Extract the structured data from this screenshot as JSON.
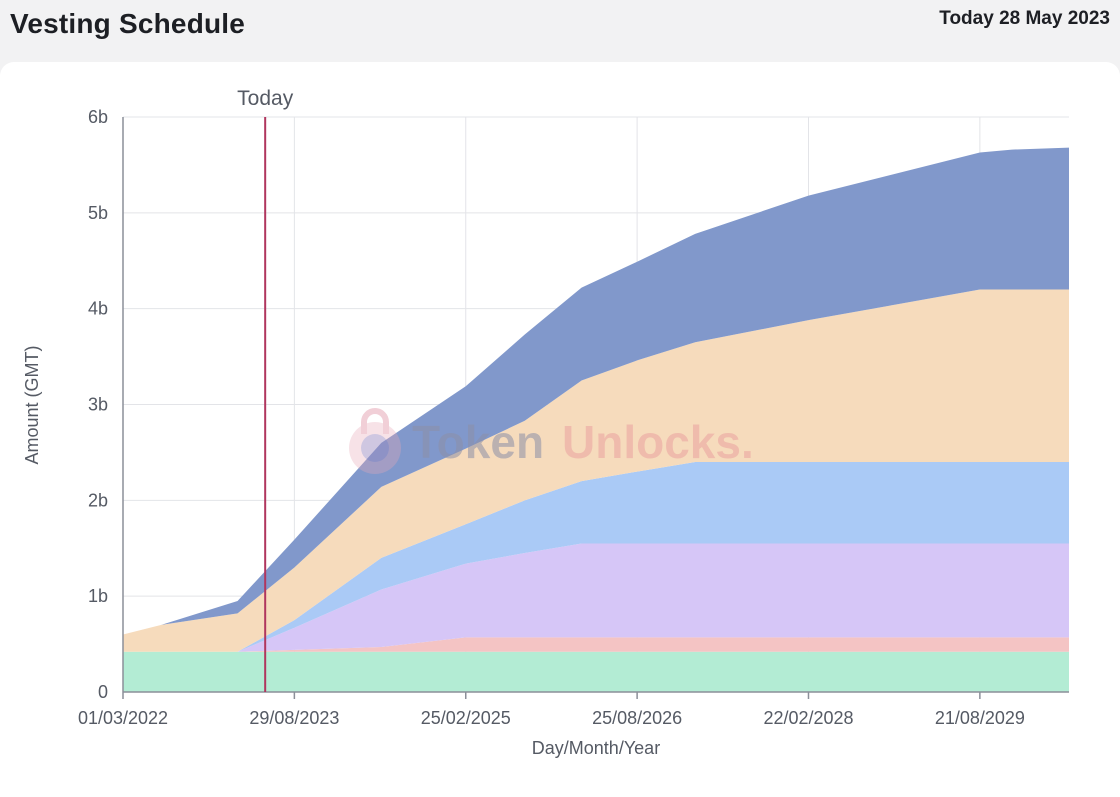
{
  "header": {
    "title": "Vesting Schedule",
    "today_text": "Today 28 May 2023"
  },
  "watermark": {
    "text_a": "Token",
    "text_b": "Unlocks."
  },
  "chart_data": {
    "type": "area",
    "stacked": true,
    "xlabel": "Day/Month/Year",
    "ylabel": "Amount (GMT)",
    "x_range": [
      "2022-03-01",
      "2030-06-01"
    ],
    "ylim": [
      0,
      6000000000
    ],
    "y_ticks": [
      {
        "value": 0,
        "label": "0"
      },
      {
        "value": 1000000000,
        "label": "1b"
      },
      {
        "value": 2000000000,
        "label": "2b"
      },
      {
        "value": 3000000000,
        "label": "3b"
      },
      {
        "value": 4000000000,
        "label": "4b"
      },
      {
        "value": 5000000000,
        "label": "5b"
      },
      {
        "value": 6000000000,
        "label": "6b"
      }
    ],
    "x_ticks": [
      {
        "date": "2022-03-01",
        "label": "01/03/2022"
      },
      {
        "date": "2023-08-29",
        "label": "29/08/2023"
      },
      {
        "date": "2025-02-25",
        "label": "25/02/2025"
      },
      {
        "date": "2026-08-25",
        "label": "25/08/2026"
      },
      {
        "date": "2028-02-22",
        "label": "22/02/2028"
      },
      {
        "date": "2029-08-21",
        "label": "21/08/2029"
      }
    ],
    "grid": true,
    "marker": {
      "label": "Today",
      "date": "2023-05-28",
      "color": "#b0365e"
    },
    "series": [
      {
        "color": "#b3ecd4",
        "points": [
          [
            "2022-03-01",
            420000000
          ],
          [
            "2030-06-01",
            420000000
          ]
        ]
      },
      {
        "color": "#f4c4c4",
        "points": [
          [
            "2022-03-01",
            0
          ],
          [
            "2023-03-01",
            0
          ],
          [
            "2024-06-01",
            50000000
          ],
          [
            "2025-02-25",
            150000000
          ],
          [
            "2030-06-01",
            150000000
          ]
        ]
      },
      {
        "color": "#d6c6f7",
        "points": [
          [
            "2022-03-01",
            0
          ],
          [
            "2023-03-01",
            0
          ],
          [
            "2023-08-29",
            230000000
          ],
          [
            "2024-06-01",
            600000000
          ],
          [
            "2025-02-25",
            770000000
          ],
          [
            "2025-09-01",
            880000000
          ],
          [
            "2026-03-01",
            980000000
          ],
          [
            "2030-06-01",
            980000000
          ]
        ]
      },
      {
        "color": "#aacaf6",
        "points": [
          [
            "2022-03-01",
            0
          ],
          [
            "2023-03-01",
            0
          ],
          [
            "2023-08-29",
            80000000
          ],
          [
            "2024-06-01",
            330000000
          ],
          [
            "2025-02-25",
            410000000
          ],
          [
            "2025-09-01",
            550000000
          ],
          [
            "2026-03-01",
            650000000
          ],
          [
            "2026-08-25",
            750000000
          ],
          [
            "2027-02-26",
            850000000
          ],
          [
            "2030-06-01",
            850000000
          ]
        ]
      },
      {
        "color": "#f6dbbc",
        "points": [
          [
            "2022-03-01",
            180000000
          ],
          [
            "2022-07-01",
            280000000
          ],
          [
            "2023-03-01",
            400000000
          ],
          [
            "2023-08-29",
            550000000
          ],
          [
            "2024-06-01",
            740000000
          ],
          [
            "2025-02-25",
            790000000
          ],
          [
            "2025-09-01",
            830000000
          ],
          [
            "2026-03-01",
            1050000000
          ],
          [
            "2026-08-25",
            1160000000
          ],
          [
            "2027-02-26",
            1250000000
          ],
          [
            "2028-02-22",
            1480000000
          ],
          [
            "2029-08-21",
            1800000000
          ],
          [
            "2030-06-01",
            1800000000
          ]
        ]
      },
      {
        "color": "#8198cb",
        "points": [
          [
            "2022-03-01",
            0
          ],
          [
            "2022-07-01",
            0
          ],
          [
            "2023-03-01",
            130000000
          ],
          [
            "2023-08-29",
            290000000
          ],
          [
            "2024-06-01",
            460000000
          ],
          [
            "2025-02-25",
            650000000
          ],
          [
            "2025-09-01",
            900000000
          ],
          [
            "2026-03-01",
            970000000
          ],
          [
            "2026-08-25",
            1030000000
          ],
          [
            "2027-02-26",
            1130000000
          ],
          [
            "2028-02-22",
            1300000000
          ],
          [
            "2029-08-21",
            1430000000
          ],
          [
            "2029-12-01",
            1460000000
          ],
          [
            "2030-06-01",
            1480000000
          ]
        ]
      }
    ]
  }
}
